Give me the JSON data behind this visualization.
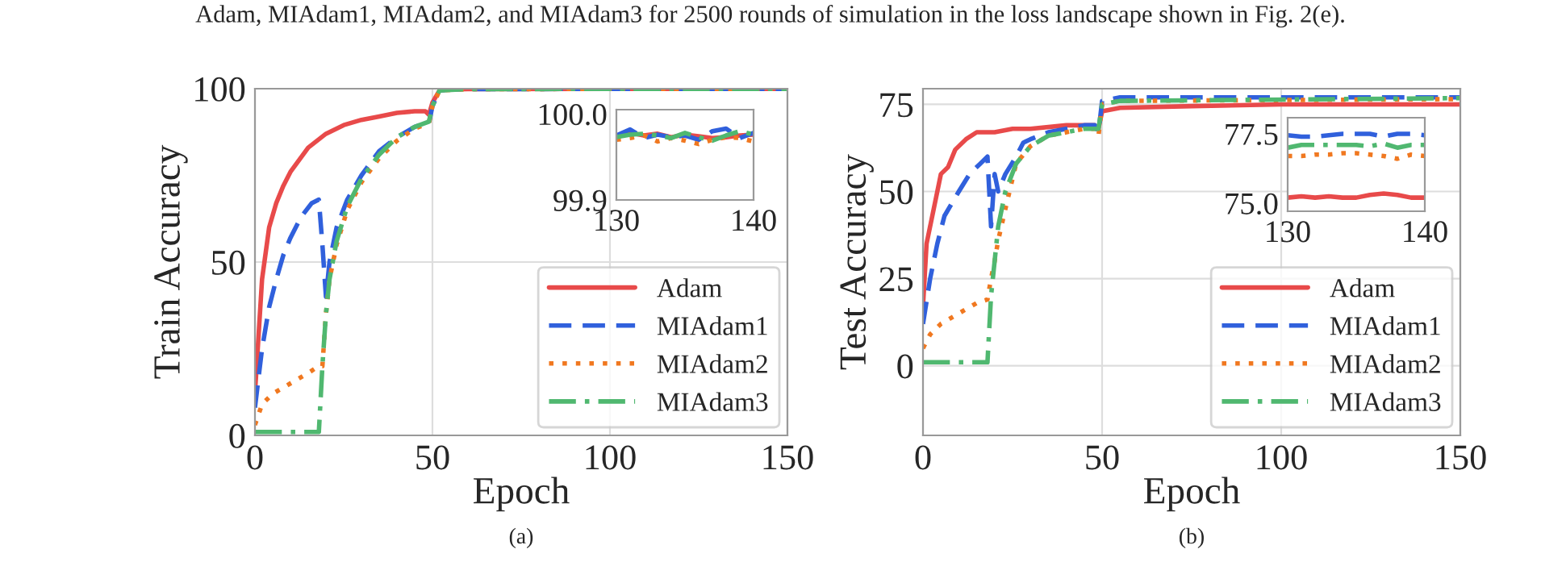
{
  "chart_data": [
    {
      "type": "line",
      "xlabel": "Epoch",
      "ylabel": "Train Accuracy",
      "xlim": [
        0,
        150
      ],
      "ylim": [
        0,
        100
      ],
      "xticks": [
        0,
        50,
        100,
        150
      ],
      "yticks": [
        0,
        50,
        100
      ],
      "grid": true,
      "legend": "bottom right",
      "annotations": [
        "Adam, MIAdam1, MIAdam2, and MIAdam3 for 2500 rounds of simulation in the loss landscape shown in Fig. 2(e).",
        "(a)"
      ],
      "series": [
        {
          "name": "Adam",
          "color": "#e84a4a",
          "line_style": "solid",
          "x": [
            0,
            2,
            4,
            6,
            8,
            10,
            15,
            20,
            25,
            30,
            35,
            40,
            45,
            48,
            49,
            50,
            52,
            55,
            60,
            150
          ],
          "values": [
            12,
            45,
            60,
            67,
            72,
            76,
            83,
            87,
            89.5,
            91,
            92,
            93,
            93.5,
            93.5,
            92.5,
            96,
            99.5,
            99.8,
            99.9,
            99.97
          ]
        },
        {
          "name": "MIAdam1",
          "color": "#3060dc",
          "line_style": "dashed",
          "x": [
            0,
            2,
            4,
            6,
            8,
            10,
            13,
            16,
            18,
            19,
            20,
            21,
            23,
            26,
            30,
            35,
            40,
            45,
            48,
            49,
            50,
            52,
            55,
            60,
            150
          ],
          "values": [
            8,
            25,
            37,
            45,
            52,
            57,
            63,
            67,
            68,
            55,
            40,
            50,
            60,
            68,
            75,
            82,
            86,
            89,
            90,
            90,
            95,
            99.5,
            99.8,
            99.9,
            99.97
          ]
        },
        {
          "name": "MIAdam2",
          "color": "#f07820",
          "line_style": "dotted",
          "x": [
            0,
            2,
            5,
            10,
            15,
            18,
            19,
            20,
            21,
            23,
            26,
            30,
            35,
            40,
            45,
            49,
            50,
            52,
            60,
            150
          ],
          "values": [
            3,
            9,
            12,
            15,
            18,
            20,
            20,
            35,
            45,
            55,
            65,
            73,
            80,
            85,
            88.5,
            90,
            95,
            99.5,
            99.9,
            99.97
          ]
        },
        {
          "name": "MIAdam3",
          "color": "#50b870",
          "line_style": "dashdot",
          "x": [
            0,
            10,
            18,
            19,
            20,
            21,
            23,
            26,
            30,
            35,
            40,
            45,
            49,
            50,
            52,
            60,
            150
          ],
          "values": [
            1,
            1,
            1,
            20,
            35,
            45,
            56,
            66,
            74,
            81,
            86,
            89,
            90.5,
            95,
            99.5,
            99.9,
            99.97
          ]
        }
      ]
    },
    {
      "type": "line",
      "xlim": [
        130,
        140
      ],
      "ylim": [
        99.9,
        100.005
      ],
      "xticks": [
        130,
        140
      ],
      "yticks": [
        {
          "value": 99.9,
          "label": "99.9"
        },
        {
          "value": 100.0,
          "label": "100.0"
        }
      ],
      "grid": false,
      "legend": false,
      "series": [
        {
          "color": "#e84a4a",
          "line_style": "solid",
          "x": [
            130,
            131,
            132,
            133,
            134,
            135,
            136,
            137,
            138,
            139,
            140
          ],
          "values": [
            99.975,
            99.978,
            99.975,
            99.977,
            99.973,
            99.976,
            99.974,
            99.972,
            99.973,
            99.975,
            99.976
          ]
        },
        {
          "color": "#3060dc",
          "line_style": "dashed",
          "x": [
            130,
            131,
            132,
            133,
            134,
            135,
            136,
            137,
            138,
            139,
            140
          ],
          "values": [
            99.975,
            99.982,
            99.972,
            99.976,
            99.973,
            99.975,
            99.97,
            99.98,
            99.983,
            99.972,
            99.978
          ]
        },
        {
          "color": "#f07820",
          "line_style": "dotted",
          "x": [
            130,
            131,
            132,
            133,
            134,
            135,
            136,
            137,
            138,
            139,
            140
          ],
          "values": [
            99.97,
            99.972,
            99.975,
            99.968,
            99.972,
            99.969,
            99.965,
            99.97,
            99.973,
            99.972,
            99.968
          ]
        },
        {
          "color": "#50b870",
          "line_style": "dashdot",
          "x": [
            130,
            131,
            132,
            133,
            134,
            135,
            136,
            137,
            138,
            139,
            140
          ],
          "values": [
            99.973,
            99.976,
            99.977,
            99.975,
            99.972,
            99.978,
            99.973,
            99.969,
            99.975,
            99.98,
            99.976
          ]
        }
      ]
    },
    {
      "type": "line",
      "xlabel": "Epoch",
      "ylabel": "Test Accuracy",
      "xlim": [
        0,
        150
      ],
      "ylim": [
        -20,
        79.5
      ],
      "xticks": [
        0,
        50,
        100,
        150
      ],
      "yticks": [
        0,
        25,
        50,
        75
      ],
      "grid": true,
      "legend": "bottom right",
      "annotations": [
        "(b)"
      ],
      "series": [
        {
          "name": "Adam",
          "color": "#e84a4a",
          "line_style": "solid",
          "x": [
            0,
            1,
            3,
            5,
            7,
            9,
            12,
            15,
            20,
            25,
            30,
            40,
            48,
            49,
            50,
            55,
            75,
            100,
            150
          ],
          "values": [
            17,
            35,
            45,
            55,
            57,
            62,
            65,
            67,
            67,
            68,
            68,
            69,
            69,
            68,
            73,
            74,
            74.5,
            75,
            75
          ]
        },
        {
          "name": "MIAdam1",
          "color": "#3060dc",
          "line_style": "dashed",
          "x": [
            0,
            2,
            4,
            6,
            10,
            13,
            16,
            18,
            19,
            20,
            21,
            23,
            26,
            28,
            30,
            35,
            40,
            45,
            48,
            49,
            50,
            55,
            150
          ],
          "values": [
            12,
            25,
            35,
            43,
            50,
            55,
            58,
            60,
            40,
            55,
            50,
            55,
            60,
            64,
            65,
            67,
            68,
            69,
            69,
            67,
            76,
            77,
            77
          ]
        },
        {
          "name": "MIAdam2",
          "color": "#f07820",
          "line_style": "dotted",
          "x": [
            0,
            2,
            5,
            10,
            15,
            18,
            19,
            20,
            21,
            23,
            26,
            30,
            35,
            40,
            45,
            48,
            49,
            50,
            55,
            150
          ],
          "values": [
            5,
            9,
            12,
            15,
            18,
            19,
            25,
            30,
            36,
            45,
            58,
            63,
            66,
            67,
            68,
            68,
            66,
            75,
            76,
            76.5
          ]
        },
        {
          "name": "MIAdam3",
          "color": "#50b870",
          "line_style": "dashdot",
          "x": [
            0,
            10,
            18,
            19,
            20,
            21,
            23,
            26,
            30,
            35,
            40,
            45,
            49,
            50,
            55,
            150
          ],
          "values": [
            1,
            1,
            1,
            20,
            30,
            40,
            50,
            58,
            63,
            66,
            67,
            68,
            68,
            75,
            76,
            76.8
          ]
        }
      ]
    },
    {
      "type": "line",
      "xlim": [
        130,
        140
      ],
      "ylim": [
        74.71,
        78.08
      ],
      "xticks": [
        130,
        140
      ],
      "yticks": [
        {
          "value": 75.0,
          "label": "75.0"
        },
        {
          "value": 77.5,
          "label": "77.5"
        }
      ],
      "grid": false,
      "legend": false,
      "series": [
        {
          "color": "#e84a4a",
          "line_style": "solid",
          "x": [
            130,
            131,
            132,
            133,
            134,
            135,
            136,
            137,
            138,
            139,
            140
          ],
          "values": [
            75.2,
            75.25,
            75.2,
            75.25,
            75.2,
            75.2,
            75.3,
            75.35,
            75.3,
            75.2,
            75.2
          ]
        },
        {
          "color": "#3060dc",
          "line_style": "dashed",
          "x": [
            130,
            131,
            132,
            133,
            134,
            135,
            136,
            137,
            138,
            139,
            140
          ],
          "values": [
            77.45,
            77.4,
            77.4,
            77.45,
            77.5,
            77.5,
            77.5,
            77.4,
            77.5,
            77.5,
            77.45
          ]
        },
        {
          "color": "#f07820",
          "line_style": "dotted",
          "x": [
            130,
            131,
            132,
            133,
            134,
            135,
            136,
            137,
            138,
            139,
            140
          ],
          "values": [
            76.7,
            76.7,
            76.75,
            76.75,
            76.8,
            76.8,
            76.75,
            76.7,
            76.6,
            76.75,
            76.7
          ]
        },
        {
          "color": "#50b870",
          "line_style": "dashdot",
          "x": [
            130,
            131,
            132,
            133,
            134,
            135,
            136,
            137,
            138,
            139,
            140
          ],
          "values": [
            77.0,
            77.1,
            77.1,
            77.1,
            77.1,
            77.1,
            77.05,
            77.15,
            77.0,
            77.1,
            77.1
          ]
        }
      ]
    }
  ]
}
